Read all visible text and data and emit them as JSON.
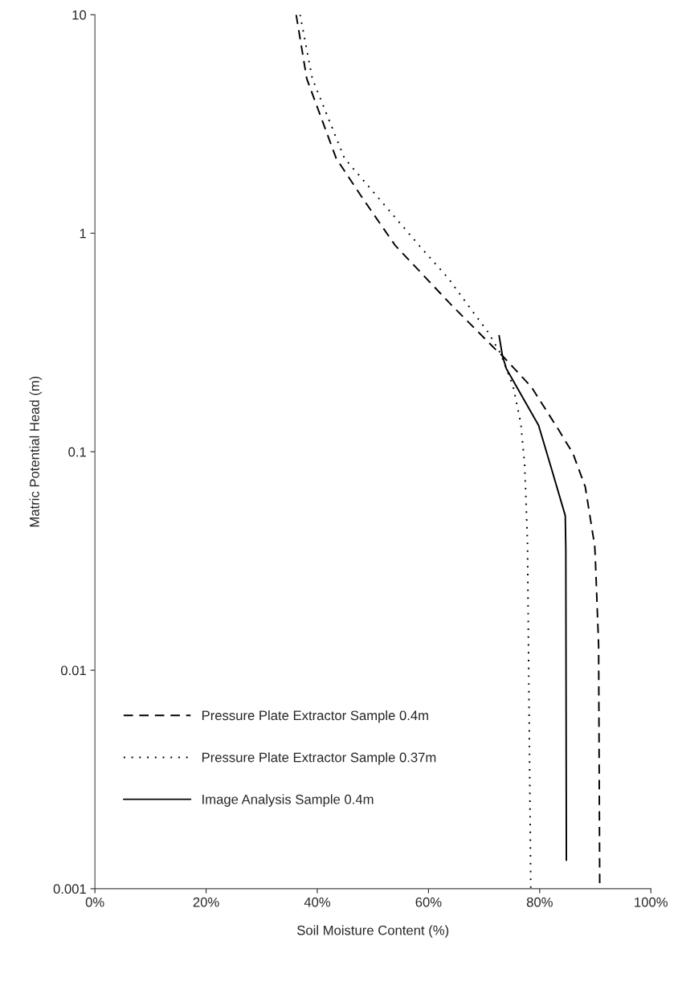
{
  "chart_data": {
    "type": "line",
    "xlabel": "Soil Moisture Content (%)",
    "ylabel": "Matric Potential Head (m)",
    "log": "y",
    "xlim": [
      0,
      100
    ],
    "xticks": [
      {
        "value": 0,
        "label": "0%"
      },
      {
        "value": 20,
        "label": "20%"
      },
      {
        "value": 40,
        "label": "40%"
      },
      {
        "value": 60,
        "label": "60%"
      },
      {
        "value": 80,
        "label": "80%"
      },
      {
        "value": 100,
        "label": "100%"
      }
    ],
    "ylim": [
      0.001,
      10
    ],
    "yticks": [
      {
        "value": 0.001,
        "label": "0.001"
      },
      {
        "value": 0.01,
        "label": "0.01"
      },
      {
        "value": 0.1,
        "label": "0.1"
      },
      {
        "value": 1,
        "label": "1"
      },
      {
        "value": 10,
        "label": "10"
      }
    ],
    "grid": false,
    "legend": "bottom left",
    "series": [
      {
        "name": "Pressure Plate Extractor Sample 0.4m",
        "color": "#000000",
        "line_style": "dashed",
        "x": [
          36.2,
          38.1,
          43.4,
          48.2,
          54.0,
          64.1,
          72.0,
          73.3,
          78.5,
          83.4,
          86.0,
          88.2,
          89.9,
          90.0,
          90.6,
          90.8
        ],
        "values": [
          10,
          5.1,
          2.2,
          1.44,
          0.88,
          0.47,
          0.295,
          0.275,
          0.198,
          0.126,
          0.098,
          0.069,
          0.037,
          0.033,
          0.013,
          0.001
        ]
      },
      {
        "name": "Pressure Plate Extractor Sample 0.37m",
        "color": "#000000",
        "line_style": "dotted",
        "x": [
          36.9,
          39.1,
          44.9,
          51.1,
          58.3,
          63.6,
          66.8,
          70.8,
          73.0,
          75.2,
          76.6,
          77.3,
          77.8,
          78.4
        ],
        "values": [
          10,
          5.1,
          2.2,
          1.44,
          0.88,
          0.62,
          0.48,
          0.35,
          0.28,
          0.2,
          0.135,
          0.087,
          0.039,
          0.001
        ]
      },
      {
        "name": "Image Analysis Sample 0.4m",
        "color": "#000000",
        "line_style": "solid",
        "x": [
          72.7,
          73.3,
          74.0,
          79.8,
          82.1,
          84.6,
          84.7,
          84.8
        ],
        "values": [
          0.34,
          0.275,
          0.24,
          0.132,
          0.084,
          0.051,
          0.036,
          0.00135
        ]
      }
    ]
  }
}
